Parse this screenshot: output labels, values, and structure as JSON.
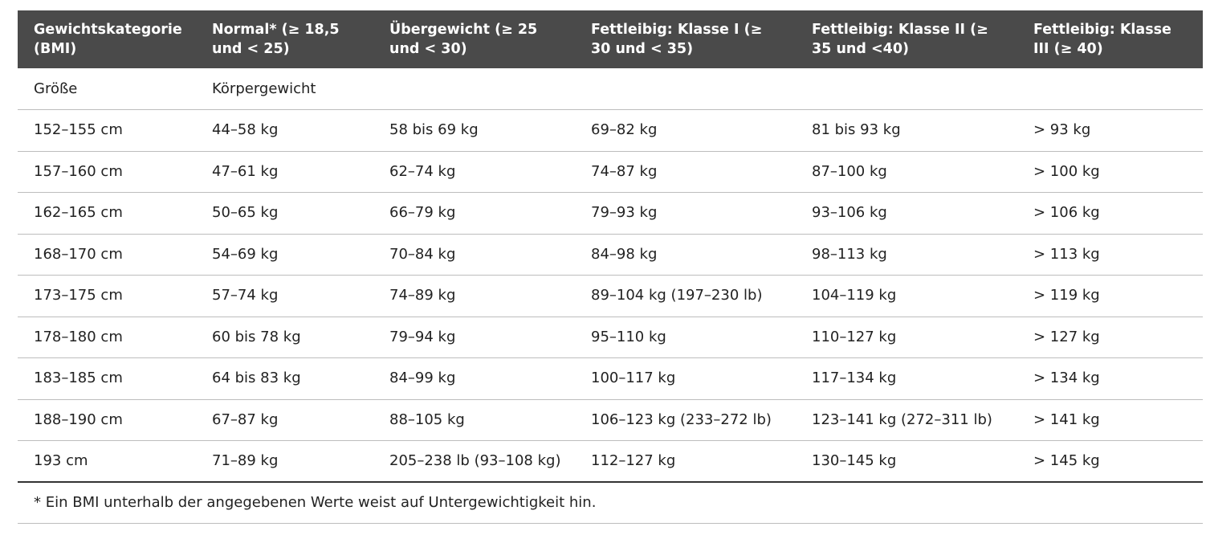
{
  "table": {
    "headers": [
      "Gewichtskategorie (BMI)",
      "Normal* (≥ 18,5 und < 25)",
      "Übergewicht (≥ 25 und < 30)",
      "Fettleibig: Klasse I (≥ 30 und < 35)",
      "Fettleibig: Klasse II (≥ 35 und <40)",
      "Fettleibig: Klasse III (≥ 40)"
    ],
    "subheader": [
      "Größe",
      "Körpergewicht",
      "",
      "",
      "",
      ""
    ],
    "rows": [
      [
        "152–155 cm",
        "44–58 kg",
        "58 bis 69 kg",
        "69–82 kg",
        "81 bis 93 kg",
        "> 93 kg"
      ],
      [
        "157–160 cm",
        "47–61 kg",
        "62–74 kg",
        "74–87 kg",
        "87–100 kg",
        "> 100 kg"
      ],
      [
        "162–165 cm",
        "50–65 kg",
        "66–79 kg",
        "79–93 kg",
        "93–106 kg",
        "> 106 kg"
      ],
      [
        "168–170 cm",
        "54–69 kg",
        "70–84 kg",
        "84–98 kg",
        "98–113 kg",
        "> 113 kg"
      ],
      [
        "173–175 cm",
        "57–74 kg",
        "74–89 kg",
        "89–104 kg (197–230 lb)",
        "104–119 kg",
        "> 119 kg"
      ],
      [
        "178–180 cm",
        "60 bis 78 kg",
        "79–94 kg",
        "95–110 kg",
        "110–127 kg",
        "> 127 kg"
      ],
      [
        "183–185 cm",
        "64 bis 83 kg",
        "84–99 kg",
        "100–117 kg",
        "117–134 kg",
        "> 134 kg"
      ],
      [
        "188–190 cm",
        "67–87 kg",
        "88–105 kg",
        "106–123 kg (233–272 lb)",
        "123–141 kg (272–311 lb)",
        "> 141 kg"
      ],
      [
        "193 cm",
        "71–89 kg",
        "205–238 lb (93–108 kg)",
        "112–127 kg",
        "130–145 kg",
        "> 145 kg"
      ]
    ],
    "footnote": "* Ein BMI unterhalb der angegebenen Werte weist auf Untergewichtigkeit hin."
  },
  "colors": {
    "header_background": "#4a4a4a",
    "header_text": "#ffffff",
    "body_text": "#222222",
    "row_divider": "#bdbdbd"
  }
}
